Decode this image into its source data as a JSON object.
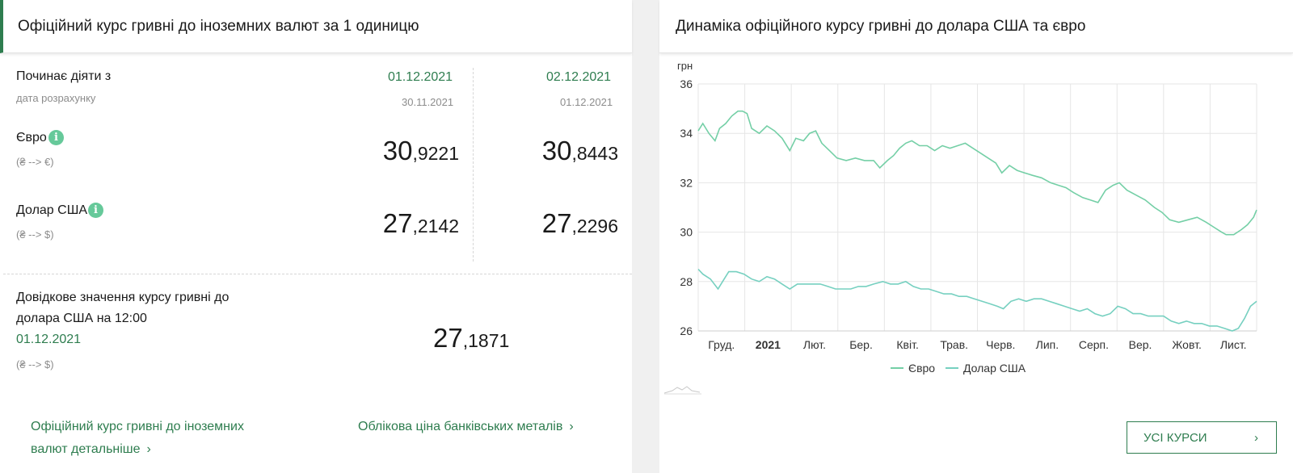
{
  "left": {
    "title": "Офіційний курс гривні до іноземних валют за 1 одиницю",
    "starts_label": "Починає діяти з",
    "calc_label": "дата розрахунку",
    "columns": [
      {
        "date": "01.12.2021",
        "calc_date": "30.11.2021",
        "eur_int": "30",
        "eur_frac": ",9221",
        "usd_int": "27",
        "usd_frac": ",2142"
      },
      {
        "date": "02.12.2021",
        "calc_date": "01.12.2021",
        "eur_int": "30",
        "eur_frac": ",8443",
        "usd_int": "27",
        "usd_frac": ",2296"
      }
    ],
    "eur_label": "Євро",
    "eur_sub": "(₴ --> €)",
    "usd_label": "Долар США",
    "usd_sub": "(₴ --> $)",
    "info_icon": "i",
    "ref_text_1": "Довідкове значення курсу гривні до",
    "ref_text_2": "долара США на 12:00",
    "ref_date": "01.12.2021",
    "ref_sub": "(₴ --> $)",
    "ref_int": "27",
    "ref_frac": ",1871",
    "link1_line1": "Офіційний курс гривні до іноземних",
    "link1_line2": "валют детальніше",
    "link2": "Облікова ціна банківських металів",
    "chevron": "›"
  },
  "right": {
    "title": "Динаміка офіційного курсу гривні до долара США та євро",
    "button_label": "УСІ КУРСИ",
    "chevron": "›"
  },
  "colors": {
    "green": "#2e7d4f",
    "eur_line": "#74cfa6",
    "usd_line": "#76d0c0",
    "info": "#66c99a"
  },
  "chart_data": {
    "type": "line",
    "ylabel": "грн",
    "ylim": [
      26,
      36
    ],
    "yticks": [
      26,
      28,
      30,
      32,
      34,
      36
    ],
    "x_ticks": [
      "Груд.",
      "2021",
      "Лют.",
      "Бер.",
      "Квіт.",
      "Трав.",
      "Черв.",
      "Лип.",
      "Серп.",
      "Вер.",
      "Жовт.",
      "Лист."
    ],
    "x_start": "2020-12-01",
    "x_end": "2021-12-02",
    "series": [
      {
        "name": "Євро",
        "points": [
          [
            "2020-12-01",
            34.1
          ],
          [
            "2020-12-04",
            34.4
          ],
          [
            "2020-12-08",
            34.0
          ],
          [
            "2020-12-12",
            33.7
          ],
          [
            "2020-12-15",
            34.2
          ],
          [
            "2020-12-19",
            34.4
          ],
          [
            "2020-12-23",
            34.7
          ],
          [
            "2020-12-27",
            34.9
          ],
          [
            "2020-12-30",
            34.9
          ],
          [
            "2021-01-02",
            34.8
          ],
          [
            "2021-01-05",
            34.2
          ],
          [
            "2021-01-10",
            34.0
          ],
          [
            "2021-01-15",
            34.3
          ],
          [
            "2021-01-20",
            34.1
          ],
          [
            "2021-01-25",
            33.8
          ],
          [
            "2021-01-30",
            33.3
          ],
          [
            "2021-02-03",
            33.8
          ],
          [
            "2021-02-08",
            33.7
          ],
          [
            "2021-02-12",
            34.0
          ],
          [
            "2021-02-16",
            34.1
          ],
          [
            "2021-02-20",
            33.6
          ],
          [
            "2021-02-25",
            33.3
          ],
          [
            "2021-03-02",
            33.0
          ],
          [
            "2021-03-08",
            32.9
          ],
          [
            "2021-03-14",
            33.0
          ],
          [
            "2021-03-20",
            32.9
          ],
          [
            "2021-03-26",
            32.9
          ],
          [
            "2021-03-30",
            32.6
          ],
          [
            "2021-04-04",
            32.9
          ],
          [
            "2021-04-08",
            33.1
          ],
          [
            "2021-04-12",
            33.4
          ],
          [
            "2021-04-16",
            33.6
          ],
          [
            "2021-04-20",
            33.7
          ],
          [
            "2021-04-25",
            33.5
          ],
          [
            "2021-04-30",
            33.5
          ],
          [
            "2021-05-05",
            33.3
          ],
          [
            "2021-05-10",
            33.5
          ],
          [
            "2021-05-15",
            33.4
          ],
          [
            "2021-05-20",
            33.5
          ],
          [
            "2021-05-25",
            33.6
          ],
          [
            "2021-05-30",
            33.4
          ],
          [
            "2021-06-04",
            33.2
          ],
          [
            "2021-06-09",
            33.0
          ],
          [
            "2021-06-14",
            32.8
          ],
          [
            "2021-06-18",
            32.4
          ],
          [
            "2021-06-23",
            32.7
          ],
          [
            "2021-06-28",
            32.5
          ],
          [
            "2021-07-03",
            32.4
          ],
          [
            "2021-07-08",
            32.3
          ],
          [
            "2021-07-14",
            32.2
          ],
          [
            "2021-07-20",
            32.0
          ],
          [
            "2021-07-25",
            31.9
          ],
          [
            "2021-07-30",
            31.8
          ],
          [
            "2021-08-04",
            31.6
          ],
          [
            "2021-08-10",
            31.4
          ],
          [
            "2021-08-15",
            31.3
          ],
          [
            "2021-08-20",
            31.2
          ],
          [
            "2021-08-25",
            31.7
          ],
          [
            "2021-08-30",
            31.9
          ],
          [
            "2021-09-03",
            32.0
          ],
          [
            "2021-09-08",
            31.7
          ],
          [
            "2021-09-14",
            31.5
          ],
          [
            "2021-09-20",
            31.3
          ],
          [
            "2021-09-26",
            31.0
          ],
          [
            "2021-10-01",
            30.8
          ],
          [
            "2021-10-06",
            30.5
          ],
          [
            "2021-10-12",
            30.4
          ],
          [
            "2021-10-18",
            30.5
          ],
          [
            "2021-10-24",
            30.6
          ],
          [
            "2021-10-30",
            30.4
          ],
          [
            "2021-11-04",
            30.2
          ],
          [
            "2021-11-09",
            30.0
          ],
          [
            "2021-11-12",
            29.9
          ],
          [
            "2021-11-17",
            29.9
          ],
          [
            "2021-11-22",
            30.1
          ],
          [
            "2021-11-26",
            30.3
          ],
          [
            "2021-11-30",
            30.6
          ],
          [
            "2021-12-02",
            30.9
          ]
        ]
      },
      {
        "name": "Долар США",
        "points": [
          [
            "2020-12-01",
            28.5
          ],
          [
            "2020-12-04",
            28.3
          ],
          [
            "2020-12-09",
            28.1
          ],
          [
            "2020-12-14",
            27.7
          ],
          [
            "2020-12-18",
            28.1
          ],
          [
            "2020-12-21",
            28.4
          ],
          [
            "2020-12-26",
            28.4
          ],
          [
            "2020-12-31",
            28.3
          ],
          [
            "2021-01-05",
            28.1
          ],
          [
            "2021-01-10",
            28.0
          ],
          [
            "2021-01-15",
            28.2
          ],
          [
            "2021-01-20",
            28.1
          ],
          [
            "2021-01-25",
            27.9
          ],
          [
            "2021-01-30",
            27.7
          ],
          [
            "2021-02-04",
            27.9
          ],
          [
            "2021-02-09",
            27.9
          ],
          [
            "2021-02-14",
            27.9
          ],
          [
            "2021-02-19",
            27.9
          ],
          [
            "2021-02-24",
            27.8
          ],
          [
            "2021-03-01",
            27.7
          ],
          [
            "2021-03-06",
            27.7
          ],
          [
            "2021-03-11",
            27.7
          ],
          [
            "2021-03-16",
            27.8
          ],
          [
            "2021-03-21",
            27.8
          ],
          [
            "2021-03-26",
            27.9
          ],
          [
            "2021-04-01",
            28.0
          ],
          [
            "2021-04-06",
            27.9
          ],
          [
            "2021-04-11",
            27.9
          ],
          [
            "2021-04-16",
            28.0
          ],
          [
            "2021-04-21",
            27.8
          ],
          [
            "2021-04-26",
            27.7
          ],
          [
            "2021-05-01",
            27.7
          ],
          [
            "2021-05-06",
            27.6
          ],
          [
            "2021-05-11",
            27.5
          ],
          [
            "2021-05-16",
            27.5
          ],
          [
            "2021-05-21",
            27.4
          ],
          [
            "2021-05-26",
            27.4
          ],
          [
            "2021-05-31",
            27.3
          ],
          [
            "2021-06-05",
            27.2
          ],
          [
            "2021-06-10",
            27.1
          ],
          [
            "2021-06-15",
            27.0
          ],
          [
            "2021-06-19",
            26.9
          ],
          [
            "2021-06-24",
            27.2
          ],
          [
            "2021-06-29",
            27.3
          ],
          [
            "2021-07-04",
            27.2
          ],
          [
            "2021-07-09",
            27.3
          ],
          [
            "2021-07-14",
            27.3
          ],
          [
            "2021-07-19",
            27.2
          ],
          [
            "2021-07-24",
            27.1
          ],
          [
            "2021-07-29",
            27.0
          ],
          [
            "2021-08-03",
            26.9
          ],
          [
            "2021-08-08",
            26.8
          ],
          [
            "2021-08-13",
            26.9
          ],
          [
            "2021-08-18",
            26.7
          ],
          [
            "2021-08-23",
            26.6
          ],
          [
            "2021-08-28",
            26.7
          ],
          [
            "2021-09-02",
            27.0
          ],
          [
            "2021-09-07",
            26.9
          ],
          [
            "2021-09-12",
            26.7
          ],
          [
            "2021-09-17",
            26.7
          ],
          [
            "2021-09-22",
            26.6
          ],
          [
            "2021-09-27",
            26.6
          ],
          [
            "2021-10-02",
            26.6
          ],
          [
            "2021-10-07",
            26.4
          ],
          [
            "2021-10-12",
            26.3
          ],
          [
            "2021-10-17",
            26.4
          ],
          [
            "2021-10-22",
            26.3
          ],
          [
            "2021-10-27",
            26.3
          ],
          [
            "2021-11-01",
            26.2
          ],
          [
            "2021-11-06",
            26.2
          ],
          [
            "2021-11-11",
            26.1
          ],
          [
            "2021-11-16",
            26.0
          ],
          [
            "2021-11-20",
            26.1
          ],
          [
            "2021-11-24",
            26.5
          ],
          [
            "2021-11-28",
            27.0
          ],
          [
            "2021-12-02",
            27.2
          ]
        ]
      }
    ],
    "legend": "bottom",
    "grid": true
  }
}
